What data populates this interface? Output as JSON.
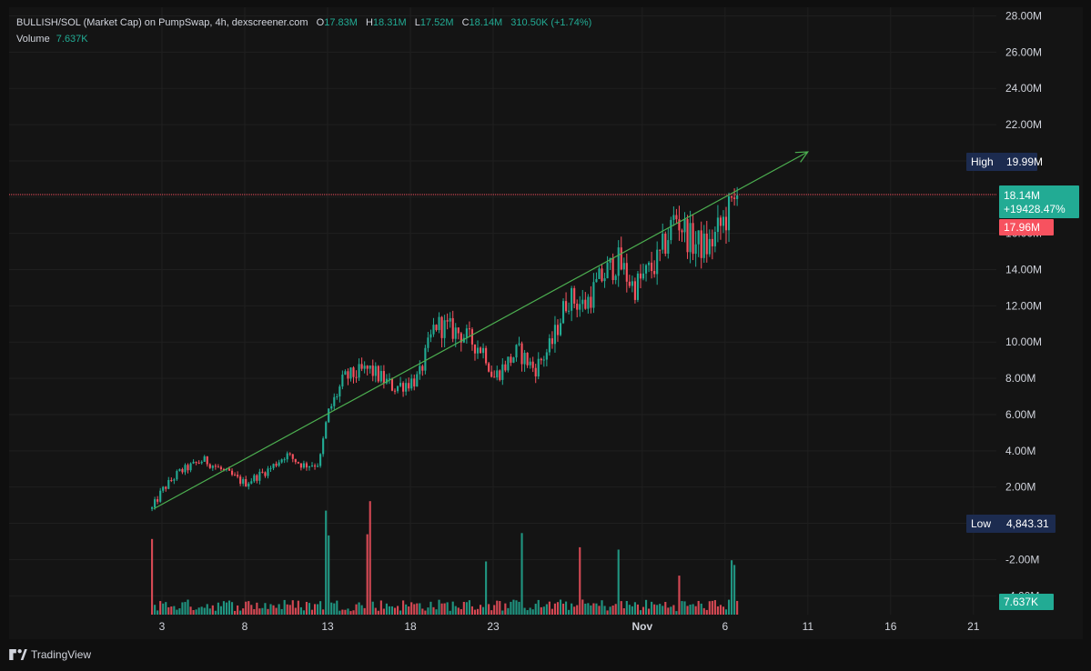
{
  "header": {
    "symbol": "BULLISH/SOL (Market Cap) on PumpSwap, 4h, dexscreener.com",
    "o_label": "O",
    "o_value": "17.83M",
    "h_label": "H",
    "h_value": "18.31M",
    "l_label": "L",
    "l_value": "17.52M",
    "c_label": "C",
    "c_value": "18.14M",
    "change": "310.50K (+1.74%)",
    "volume_label": "Volume",
    "volume_value": "7.637K"
  },
  "price_axis": {
    "ticks": [
      {
        "label": "28.00M",
        "value": 28
      },
      {
        "label": "26.00M",
        "value": 26
      },
      {
        "label": "24.00M",
        "value": 24
      },
      {
        "label": "22.00M",
        "value": 22
      },
      {
        "label": "16.00M",
        "value": 16
      },
      {
        "label": "14.00M",
        "value": 14
      },
      {
        "label": "12.00M",
        "value": 12
      },
      {
        "label": "10.00M",
        "value": 10
      },
      {
        "label": "8.00M",
        "value": 8
      },
      {
        "label": "6.00M",
        "value": 6
      },
      {
        "label": "4.00M",
        "value": 4
      },
      {
        "label": "2.00M",
        "value": 2
      },
      {
        "label": "-2.00M",
        "value": -2
      },
      {
        "label": "-4.00M",
        "value": -4
      }
    ]
  },
  "time_axis": {
    "ticks": [
      {
        "label": "3",
        "day": 3,
        "bold": false
      },
      {
        "label": "8",
        "day": 8,
        "bold": false
      },
      {
        "label": "13",
        "day": 13,
        "bold": false
      },
      {
        "label": "18",
        "day": 18,
        "bold": false
      },
      {
        "label": "23",
        "day": 23,
        "bold": false
      },
      {
        "label": "Nov",
        "day": 32,
        "bold": true
      },
      {
        "label": "6",
        "day": 37,
        "bold": false
      },
      {
        "label": "11",
        "day": 42,
        "bold": false
      },
      {
        "label": "16",
        "day": 47,
        "bold": false
      },
      {
        "label": "21",
        "day": 52,
        "bold": false
      }
    ]
  },
  "badges": {
    "high_label": "High",
    "high_value": "19.99M",
    "low_label": "Low",
    "low_value": "4,843.31",
    "last_price": "18.14M",
    "last_change": "+19428.47%",
    "prev_price": "17.96M",
    "volume": "7.637K"
  },
  "branding": {
    "name": "TradingView"
  },
  "colors": {
    "up": "#22ab94",
    "down": "#f7525f",
    "trend": "#4caf50",
    "badge_blue": "#1c2b4f",
    "background": "#141414"
  },
  "chart_data": {
    "type": "candlestick",
    "title": "BULLISH/SOL (Market Cap) on PumpSwap, 4h, dexscreener.com",
    "unit": "M",
    "ylim": [
      -4,
      28
    ],
    "x_range_days": [
      2.5,
      52.5
    ],
    "last_price_line": 18.14,
    "trendline": {
      "start": {
        "day": 2.5,
        "price": 0.8
      },
      "end": {
        "day": 42.0,
        "price": 20.5
      }
    },
    "anchors": [
      {
        "day": 2.4,
        "price": 0.8
      },
      {
        "day": 3.0,
        "price": 1.8
      },
      {
        "day": 4.0,
        "price": 2.8
      },
      {
        "day": 5.5,
        "price": 3.5
      },
      {
        "day": 6.5,
        "price": 3.0
      },
      {
        "day": 8.0,
        "price": 2.2
      },
      {
        "day": 9.5,
        "price": 3.0
      },
      {
        "day": 10.5,
        "price": 3.8
      },
      {
        "day": 11.5,
        "price": 3.2
      },
      {
        "day": 12.5,
        "price": 3.3
      },
      {
        "day": 13.0,
        "price": 6.0
      },
      {
        "day": 14.0,
        "price": 8.0
      },
      {
        "day": 15.5,
        "price": 8.5
      },
      {
        "day": 17.0,
        "price": 7.5
      },
      {
        "day": 18.5,
        "price": 8.0
      },
      {
        "day": 19.5,
        "price": 11.0
      },
      {
        "day": 21.0,
        "price": 10.5
      },
      {
        "day": 22.5,
        "price": 9.5
      },
      {
        "day": 23.0,
        "price": 8.0
      },
      {
        "day": 24.5,
        "price": 9.5
      },
      {
        "day": 25.5,
        "price": 8.5
      },
      {
        "day": 26.5,
        "price": 9.8
      },
      {
        "day": 27.5,
        "price": 12.5
      },
      {
        "day": 28.5,
        "price": 12.0
      },
      {
        "day": 29.5,
        "price": 13.5
      },
      {
        "day": 30.5,
        "price": 14.5
      },
      {
        "day": 31.5,
        "price": 13.0
      },
      {
        "day": 33.0,
        "price": 14.5
      },
      {
        "day": 34.0,
        "price": 17.0
      },
      {
        "day": 35.0,
        "price": 15.5
      },
      {
        "day": 36.0,
        "price": 15.2
      },
      {
        "day": 37.0,
        "price": 16.8
      },
      {
        "day": 37.8,
        "price": 18.1
      }
    ],
    "volume_spikes": [
      {
        "day": 2.4,
        "value": 0.64
      },
      {
        "day": 12.9,
        "value": 0.57
      },
      {
        "day": 12.95,
        "value": 0.88
      },
      {
        "day": 13.05,
        "value": 0.67
      },
      {
        "day": 15.4,
        "value": 0.68
      },
      {
        "day": 15.5,
        "value": 0.96
      },
      {
        "day": 22.6,
        "value": 0.45
      },
      {
        "day": 24.8,
        "value": 0.69
      },
      {
        "day": 28.2,
        "value": 0.57
      },
      {
        "day": 30.6,
        "value": 0.55
      },
      {
        "day": 34.2,
        "value": 0.33
      },
      {
        "day": 37.4,
        "value": 0.46
      },
      {
        "day": 37.5,
        "value": 0.42
      }
    ]
  }
}
